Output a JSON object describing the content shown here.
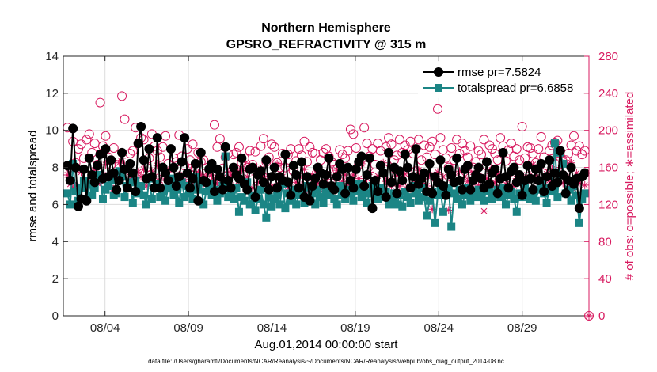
{
  "chart_data": {
    "type": "line",
    "title": "Northern Hemisphere",
    "subtitle": "GPSRO_REFRACTIVITY @ 315 m",
    "xlabel": "Aug.01,2014 00:00:00 start",
    "ylabel": "rmse and totalspread",
    "ylabel_right": "# of obs: o=possible; ∗=assimilated",
    "footer": "data file: /Users/gharamti/Documents/NCAR/Reanalysis/~/Documents/NCAR/Reanalysis/webpub/obs_diag_output_2014-08.nc",
    "xlim": [
      0.5,
      32
    ],
    "ylim": [
      0,
      14
    ],
    "ylim_right": [
      0,
      280
    ],
    "x_ticks": [
      3,
      8,
      13,
      18,
      23,
      28
    ],
    "x_tick_labels": [
      "08/04",
      "08/09",
      "08/14",
      "08/19",
      "08/24",
      "08/29"
    ],
    "y_ticks": [
      0,
      2,
      4,
      6,
      8,
      10,
      12,
      14
    ],
    "y_tick_labels": [
      "0",
      "2",
      "4",
      "6",
      "8",
      "10",
      "12",
      "14"
    ],
    "y_right_ticks": [
      0,
      40,
      80,
      120,
      160,
      200,
      240,
      280
    ],
    "y_right_tick_labels": [
      "0",
      "40",
      "80",
      "120",
      "160",
      "200",
      "240",
      "280"
    ],
    "legend_position": "top-right",
    "colors": {
      "rmse": "#000000",
      "totalspread": "#1b8585",
      "obs": "#d81b60",
      "grid": "#dcdcdc"
    },
    "series": [
      {
        "name": "rmse",
        "label": "rmse pr=7.5824",
        "values": [
          8.1,
          7.3,
          10.1,
          8.0,
          5.9,
          6.3,
          7.9,
          6.2,
          8.5,
          7.6,
          7.2,
          8.1,
          8.7,
          7.4,
          9.0,
          7.5,
          8.4,
          7.7,
          6.8,
          7.3,
          8.8,
          7.9,
          6.9,
          8.2,
          7.7,
          6.7,
          9.3,
          10.2,
          8.4,
          7.4,
          9.0,
          7.5,
          6.9,
          9.6,
          6.9,
          8.0,
          7.7,
          7.3,
          9.0,
          8.0,
          7.0,
          7.5,
          8.3,
          9.6,
          7.7,
          6.9,
          7.4,
          8.2,
          6.2,
          8.8,
          7.3,
          7.2,
          7.9,
          8.2,
          6.7,
          7.9,
          7.5,
          6.8,
          9.1,
          7.3,
          6.9,
          8.0,
          7.6,
          7.4,
          8.5,
          7.1,
          6.8,
          7.9,
          8.0,
          6.4,
          7.6,
          7.8,
          7.2,
          8.4,
          6.8,
          7.5,
          8.0,
          6.9,
          7.5,
          7.3,
          8.7,
          7.2,
          6.5,
          8.1,
          7.6,
          6.9,
          8.3,
          6.4,
          7.5,
          6.2,
          7.0,
          7.4,
          8.0,
          7.7,
          7.1,
          7.6,
          8.5,
          7.0,
          6.8,
          7.5,
          8.2,
          7.9,
          6.6,
          8.0,
          7.3,
          6.9,
          7.9,
          8.3,
          8.6,
          7.0,
          7.6,
          8.5,
          5.8,
          7.3,
          6.7,
          8.1,
          7.7,
          6.4,
          8.8,
          7.2,
          8.0,
          6.6,
          7.8,
          7.3,
          8.7,
          8.0,
          6.9,
          7.5,
          9.0,
          7.1,
          7.4,
          7.7,
          6.7,
          8.2,
          6.6,
          7.5,
          7.2,
          8.4,
          7.0,
          6.5,
          7.9,
          7.6,
          7.2,
          8.5,
          7.3,
          6.8,
          7.9,
          8.1,
          6.8,
          7.3,
          7.6,
          8.0,
          7.4,
          6.9,
          8.3,
          7.1,
          7.7,
          7.9,
          6.6,
          7.4,
          8.8,
          7.5,
          6.9,
          7.8,
          8.0,
          7.2,
          7.6,
          6.5,
          7.3,
          8.1,
          7.4,
          6.8,
          7.9,
          7.3,
          8.2,
          6.7,
          7.5,
          8.4,
          7.0,
          7.7,
          7.2,
          8.9,
          7.6,
          6.6,
          7.3,
          8.0,
          7.1,
          7.4,
          5.8,
          7.5,
          7.7
        ]
      },
      {
        "name": "totalspread",
        "label": "totalspread pr=6.6858",
        "values": [
          6.6,
          6.0,
          8.2,
          6.7,
          6.2,
          6.9,
          7.3,
          6.3,
          7.1,
          6.5,
          6.9,
          7.6,
          7.4,
          6.3,
          6.8,
          7.0,
          7.3,
          6.5,
          6.6,
          7.8,
          7.5,
          6.4,
          7.0,
          7.2,
          6.1,
          7.3,
          6.6,
          7.0,
          6.5,
          6.0,
          7.4,
          6.3,
          6.9,
          7.1,
          6.4,
          6.7,
          6.2,
          6.9,
          7.4,
          6.5,
          6.8,
          6.1,
          7.2,
          6.4,
          7.0,
          6.6,
          6.3,
          7.5,
          6.8,
          7.2,
          6.0,
          6.7,
          7.1,
          6.5,
          6.8,
          6.2,
          6.6,
          7.0,
          8.6,
          6.4,
          6.7,
          6.3,
          6.9,
          5.6,
          6.4,
          6.2,
          7.2,
          6.0,
          6.5,
          5.7,
          6.3,
          6.8,
          6.0,
          5.3,
          6.4,
          5.9,
          6.3,
          6.5,
          6.0,
          7.1,
          5.8,
          6.6,
          6.2,
          6.8,
          6.0,
          6.5,
          6.9,
          6.1,
          7.0,
          6.3,
          6.6,
          6.0,
          6.8,
          6.4,
          6.1,
          6.7,
          6.5,
          6.9,
          6.3,
          6.0,
          7.0,
          6.5,
          6.3,
          6.8,
          6.6,
          6.2,
          6.7,
          7.1,
          6.4,
          6.8,
          6.1,
          6.6,
          7.0,
          6.5,
          6.3,
          6.9,
          6.4,
          6.7,
          6.0,
          6.3,
          6.6,
          6.0,
          6.5,
          5.9,
          6.7,
          6.4,
          6.1,
          7.0,
          6.6,
          6.2,
          6.9,
          6.4,
          5.4,
          6.2,
          6.7,
          5.0,
          6.5,
          6.8,
          5.6,
          6.5,
          6.9,
          4.8,
          6.6,
          6.3,
          6.8,
          6.0,
          6.5,
          6.9,
          6.2,
          6.6,
          6.4,
          6.8,
          6.5,
          6.2,
          6.9,
          6.7,
          6.3,
          6.6,
          6.8,
          6.4,
          6.9,
          6.0,
          6.5,
          6.7,
          6.3,
          5.6,
          6.6,
          6.4,
          6.9,
          6.7,
          6.3,
          6.5,
          6.2,
          6.8,
          7.2,
          6.6,
          6.1,
          6.9,
          6.7,
          9.3,
          6.4,
          8.8,
          8.2,
          6.6,
          6.8,
          6.2,
          7.0,
          6.5,
          5.0,
          6.3,
          6.6
        ]
      },
      {
        "name": "possible",
        "values": [
          203,
          160,
          188,
          165,
          180,
          185,
          170,
          190,
          196,
          176,
          186,
          163,
          230,
          183,
          194,
          171,
          163,
          181,
          151,
          163,
          237,
          212,
          151,
          175,
          178,
          203,
          186,
          192,
          190,
          160,
          170,
          196,
          183,
          178,
          171,
          182,
          194,
          164,
          151,
          170,
          166,
          195,
          172,
          162,
          180,
          168,
          185,
          160,
          176,
          166,
          168,
          154,
          151,
          160,
          206,
          182,
          191,
          159,
          171,
          175,
          155,
          174,
          176,
          182,
          165,
          170,
          160,
          178,
          163,
          177,
          158,
          183,
          191,
          166,
          171,
          185,
          182,
          165,
          160,
          175,
          160,
          174,
          180,
          156,
          167,
          180,
          173,
          188,
          166,
          182,
          176,
          175,
          159,
          168,
          176,
          180,
          172,
          166,
          163,
          158,
          179,
          174,
          170,
          178,
          201,
          196,
          181,
          163,
          169,
          203,
          186,
          172,
          180,
          163,
          186,
          178,
          159,
          182,
          192,
          185,
          168,
          173,
          190,
          176,
          184,
          179,
          188,
          175,
          156,
          190,
          168,
          184,
          171,
          182,
          188,
          174,
          223,
          192,
          179,
          170,
          160,
          181,
          168,
          190,
          175,
          186,
          178,
          171,
          183,
          160,
          166,
          178,
          174,
          190,
          162,
          184,
          180,
          175,
          168,
          192,
          183,
          167,
          179,
          186,
          172,
          180,
          168,
          204,
          170,
          182,
          181,
          175,
          165,
          180,
          193,
          171,
          162,
          178,
          184,
          187,
          189,
          171,
          166,
          168,
          175,
          184,
          194,
          178,
          183,
          174,
          178
        ]
      },
      {
        "name": "assimilated",
        "values": [
          152,
          142,
          138,
          140,
          158,
          155,
          142,
          138,
          145,
          150,
          157,
          143,
          145,
          152,
          163,
          141,
          138,
          153,
          149,
          165,
          170,
          162,
          140,
          150,
          152,
          145,
          155,
          150,
          158,
          140,
          148,
          156,
          150,
          162,
          146,
          154,
          150,
          142,
          158,
          143,
          146,
          152,
          145,
          147,
          140,
          156,
          148,
          140,
          154,
          152,
          143,
          150,
          140,
          152,
          146,
          142,
          150,
          149,
          140,
          155,
          152,
          140,
          156,
          146,
          157,
          143,
          150,
          162,
          138,
          152,
          144,
          158,
          151,
          141,
          150,
          140,
          138,
          164,
          146,
          150,
          141,
          138,
          161,
          136,
          144,
          151,
          141,
          158,
          135,
          147,
          152,
          140,
          143,
          154,
          136,
          147,
          152,
          140,
          149,
          157,
          136,
          145,
          152,
          140,
          145,
          152,
          138,
          148,
          164,
          142,
          148,
          155,
          140,
          144,
          151,
          138,
          165,
          145,
          146,
          140,
          157,
          151,
          140,
          148,
          153,
          139,
          150,
          146,
          141,
          157,
          143,
          150,
          140,
          152,
          115,
          148,
          155,
          138,
          150,
          137,
          114,
          148,
          152,
          133,
          156,
          120,
          150,
          145,
          140,
          155,
          147,
          141,
          150,
          113,
          148,
          156,
          140,
          144,
          153,
          138,
          149,
          142,
          151,
          155,
          140,
          148,
          146,
          152,
          140,
          145,
          152,
          163,
          152,
          142,
          148,
          138,
          153,
          146,
          158,
          171,
          150,
          160,
          143,
          152,
          140,
          165,
          139,
          154,
          143,
          151,
          141
        ]
      }
    ]
  }
}
